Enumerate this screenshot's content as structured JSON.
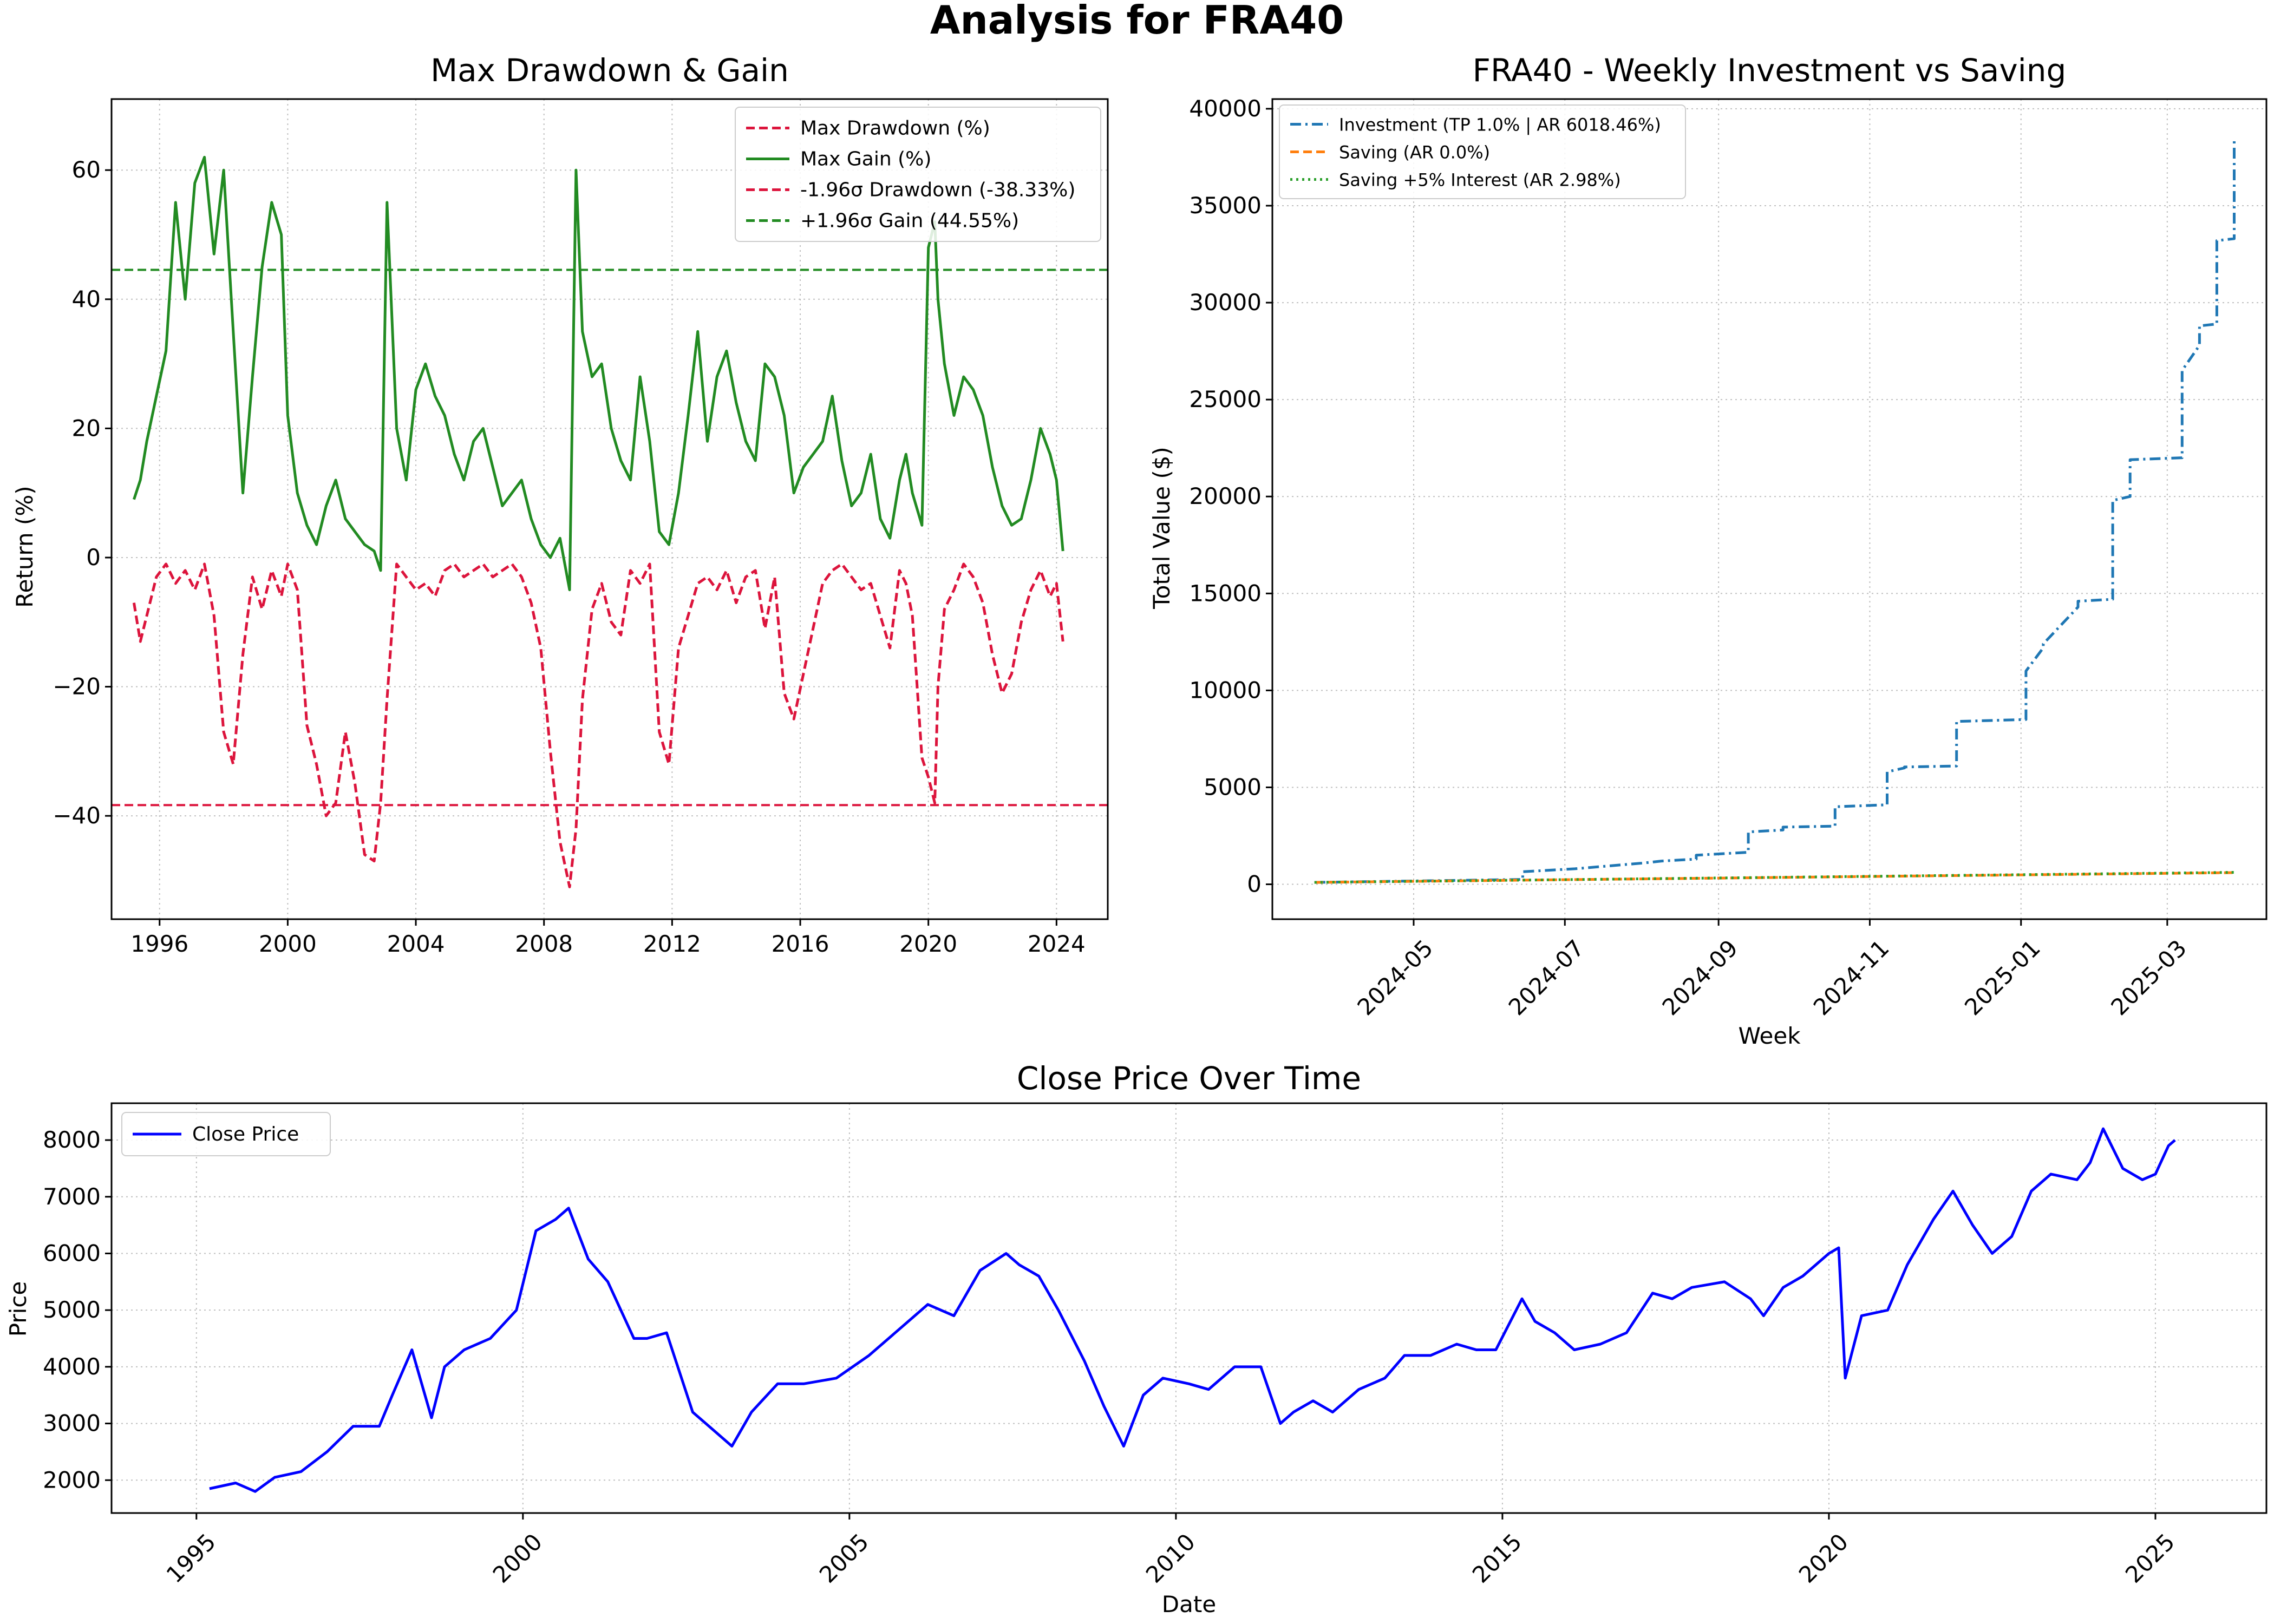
{
  "title": "Analysis for FRA40",
  "chart_data": [
    {
      "id": "drawdown",
      "type": "line",
      "title": "Max Drawdown & Gain",
      "xlabel": "",
      "ylabel": "Return (%)",
      "xlim": [
        1994.5,
        2025.6
      ],
      "ylim": [
        -56,
        71
      ],
      "xticks": [
        1996,
        2000,
        2004,
        2008,
        2012,
        2016,
        2020,
        2024
      ],
      "yticks": [
        -40,
        -20,
        0,
        20,
        40,
        60
      ],
      "ytick_labels": [
        "−40",
        "−20",
        "0",
        "20",
        "40",
        "60"
      ],
      "legend_position": "top-right",
      "grid": true,
      "series": [
        {
          "name": "Max Drawdown (%)",
          "color": "#dc143c",
          "dash": "dashed",
          "x": [
            1995.2,
            1995.4,
            1995.6,
            1995.9,
            1996.2,
            1996.5,
            1996.8,
            1997.1,
            1997.4,
            1997.7,
            1998.0,
            1998.3,
            1998.6,
            1998.9,
            1999.2,
            1999.5,
            1999.8,
            2000.0,
            2000.3,
            2000.6,
            2000.9,
            2001.2,
            2001.5,
            2001.8,
            2002.1,
            2002.4,
            2002.7,
            2002.9,
            2003.1,
            2003.4,
            2003.7,
            2004.0,
            2004.3,
            2004.6,
            2004.9,
            2005.2,
            2005.5,
            2005.8,
            2006.1,
            2006.4,
            2006.7,
            2007.0,
            2007.3,
            2007.6,
            2007.9,
            2008.2,
            2008.5,
            2008.8,
            2009.0,
            2009.2,
            2009.5,
            2009.8,
            2010.1,
            2010.4,
            2010.7,
            2011.0,
            2011.3,
            2011.6,
            2011.9,
            2012.2,
            2012.5,
            2012.8,
            2013.1,
            2013.4,
            2013.7,
            2014.0,
            2014.3,
            2014.6,
            2014.9,
            2015.2,
            2015.5,
            2015.8,
            2016.1,
            2016.4,
            2016.7,
            2017.0,
            2017.3,
            2017.6,
            2017.9,
            2018.2,
            2018.5,
            2018.8,
            2019.1,
            2019.3,
            2019.5,
            2019.8,
            2020.0,
            2020.2,
            2020.3,
            2020.5,
            2020.8,
            2021.1,
            2021.4,
            2021.7,
            2022.0,
            2022.3,
            2022.6,
            2022.9,
            2023.2,
            2023.5,
            2023.8,
            2024.0,
            2024.2
          ],
          "y": [
            -7,
            -13,
            -9,
            -3,
            -1,
            -4,
            -2,
            -5,
            -1,
            -9,
            -27,
            -32,
            -15,
            -3,
            -8,
            -2,
            -6,
            -1,
            -5,
            -26,
            -32,
            -40,
            -38,
            -27,
            -35,
            -46,
            -47,
            -38,
            -22,
            -1,
            -3,
            -5,
            -4,
            -6,
            -2,
            -1,
            -3,
            -2,
            -1,
            -3,
            -2,
            -1,
            -3,
            -7,
            -14,
            -30,
            -44,
            -51,
            -42,
            -22,
            -8,
            -4,
            -10,
            -12,
            -2,
            -4,
            -1,
            -27,
            -32,
            -14,
            -9,
            -4,
            -3,
            -5,
            -2,
            -7,
            -3,
            -2,
            -11,
            -3,
            -21,
            -25,
            -18,
            -11,
            -4,
            -2,
            -1,
            -3,
            -5,
            -4,
            -9,
            -14,
            -2,
            -4,
            -9,
            -31,
            -34,
            -38,
            -20,
            -8,
            -5,
            -1,
            -3,
            -7,
            -15,
            -21,
            -18,
            -10,
            -5,
            -2,
            -6,
            -4,
            -13
          ]
        },
        {
          "name": "Max Gain (%)",
          "color": "#228b22",
          "dash": "solid",
          "x": [
            1995.2,
            1995.4,
            1995.6,
            1995.9,
            1996.2,
            1996.5,
            1996.8,
            1997.1,
            1997.4,
            1997.7,
            1998.0,
            1998.3,
            1998.6,
            1998.9,
            1999.2,
            1999.5,
            1999.8,
            2000.0,
            2000.3,
            2000.6,
            2000.9,
            2001.2,
            2001.5,
            2001.8,
            2002.1,
            2002.4,
            2002.7,
            2002.9,
            2003.1,
            2003.4,
            2003.7,
            2004.0,
            2004.3,
            2004.6,
            2004.9,
            2005.2,
            2005.5,
            2005.8,
            2006.1,
            2006.4,
            2006.7,
            2007.0,
            2007.3,
            2007.6,
            2007.9,
            2008.2,
            2008.5,
            2008.8,
            2009.0,
            2009.2,
            2009.5,
            2009.8,
            2010.1,
            2010.4,
            2010.7,
            2011.0,
            2011.3,
            2011.6,
            2011.9,
            2012.2,
            2012.5,
            2012.8,
            2013.1,
            2013.4,
            2013.7,
            2014.0,
            2014.3,
            2014.6,
            2014.9,
            2015.2,
            2015.5,
            2015.8,
            2016.1,
            2016.4,
            2016.7,
            2017.0,
            2017.3,
            2017.6,
            2017.9,
            2018.2,
            2018.5,
            2018.8,
            2019.1,
            2019.3,
            2019.5,
            2019.8,
            2020.0,
            2020.2,
            2020.3,
            2020.5,
            2020.8,
            2021.1,
            2021.4,
            2021.7,
            2022.0,
            2022.3,
            2022.6,
            2022.9,
            2023.2,
            2023.5,
            2023.8,
            2024.0,
            2024.2
          ],
          "y": [
            9,
            12,
            18,
            25,
            32,
            55,
            40,
            58,
            62,
            47,
            60,
            35,
            10,
            28,
            45,
            55,
            50,
            22,
            10,
            5,
            2,
            8,
            12,
            6,
            4,
            2,
            1,
            -2,
            55,
            20,
            12,
            26,
            30,
            25,
            22,
            16,
            12,
            18,
            20,
            14,
            8,
            10,
            12,
            6,
            2,
            0,
            3,
            -5,
            60,
            35,
            28,
            30,
            20,
            15,
            12,
            28,
            18,
            4,
            2,
            10,
            22,
            35,
            18,
            28,
            32,
            24,
            18,
            15,
            30,
            28,
            22,
            10,
            14,
            16,
            18,
            25,
            15,
            8,
            10,
            16,
            6,
            3,
            12,
            16,
            10,
            5,
            48,
            52,
            40,
            30,
            22,
            28,
            26,
            22,
            14,
            8,
            5,
            6,
            12,
            20,
            16,
            12,
            1
          ]
        }
      ],
      "hlines": [
        {
          "name": "-1.96σ Drawdown (-38.33%)",
          "y": -38.33,
          "color": "#dc143c"
        },
        {
          "name": "+1.96σ Gain (44.55%)",
          "y": 44.55,
          "color": "#228b22"
        }
      ]
    },
    {
      "id": "investment",
      "type": "line",
      "title": "FRA40 - Weekly Investment vs Saving",
      "xlabel": "Week",
      "ylabel": "Total Value ($)",
      "x_unit": "date",
      "xlim": [
        "2024-03-05",
        "2025-04-10"
      ],
      "ylim": [
        -1800,
        40500
      ],
      "xticks": [
        "2024-05-01",
        "2024-07-01",
        "2024-09-01",
        "2024-11-01",
        "2025-01-01",
        "2025-03-01"
      ],
      "xtick_labels": [
        "2024-05",
        "2024-07",
        "2024-09",
        "2024-11",
        "2025-01",
        "2025-03"
      ],
      "yticks": [
        0,
        5000,
        10000,
        15000,
        20000,
        25000,
        30000,
        35000,
        40000
      ],
      "legend_position": "top-left",
      "grid": true,
      "series": [
        {
          "name": "Investment (TP 1.0% | AR 6018.46%)",
          "color": "#1f77b4",
          "dash": "dashdot",
          "x": [
            "2024-03-22",
            "2024-06-14",
            "2024-06-14",
            "2024-07-05",
            "2024-07-19",
            "2024-08-02",
            "2024-08-09",
            "2024-08-23",
            "2024-08-23",
            "2024-09-13",
            "2024-09-13",
            "2024-09-27",
            "2024-09-27",
            "2024-10-18",
            "2024-10-18",
            "2024-11-08",
            "2024-11-08",
            "2024-11-15",
            "2024-11-15",
            "2024-12-06",
            "2024-12-06",
            "2025-01-03",
            "2025-01-03",
            "2025-01-10",
            "2025-01-10",
            "2025-01-24",
            "2025-01-24",
            "2025-02-07",
            "2025-02-07",
            "2025-02-14",
            "2025-02-14",
            "2025-03-07",
            "2025-03-07",
            "2025-03-14",
            "2025-03-14",
            "2025-03-21",
            "2025-03-21",
            "2025-03-28",
            "2025-03-28"
          ],
          "y": [
            100,
            250,
            650,
            800,
            950,
            1100,
            1200,
            1300,
            1500,
            1650,
            2700,
            2800,
            2950,
            3000,
            4000,
            4100,
            5800,
            6000,
            6050,
            6100,
            8400,
            8500,
            11000,
            12200,
            12400,
            14300,
            14600,
            14700,
            19800,
            20000,
            21900,
            22000,
            26500,
            27800,
            28800,
            28900,
            33200,
            33300,
            38500
          ]
        },
        {
          "name": "Saving (AR 0.0%)",
          "color": "#ff7f0e",
          "dash": "dashed",
          "x": [
            "2024-03-22",
            "2025-03-28"
          ],
          "y": [
            100,
            600
          ]
        },
        {
          "name": "Saving +5% Interest (AR 2.98%)",
          "color": "#2ca02c",
          "dash": "dotted",
          "x": [
            "2024-03-22",
            "2025-03-28"
          ],
          "y": [
            100,
            615
          ]
        }
      ]
    },
    {
      "id": "close",
      "type": "line",
      "title": "Close Price Over Time",
      "xlabel": "Date",
      "ylabel": "Price",
      "xlim": [
        1993.7,
        2026.7
      ],
      "ylim": [
        1420,
        8650
      ],
      "xticks": [
        1995,
        2000,
        2005,
        2010,
        2015,
        2020,
        2025
      ],
      "yticks": [
        2000,
        3000,
        4000,
        5000,
        6000,
        7000,
        8000
      ],
      "legend_position": "top-left",
      "grid": true,
      "series": [
        {
          "name": "Close Price",
          "color": "#0000ff",
          "dash": "solid",
          "x": [
            1995.2,
            1995.6,
            1995.9,
            1996.2,
            1996.6,
            1997.0,
            1997.4,
            1997.8,
            1998.0,
            1998.3,
            1998.6,
            1998.8,
            1999.1,
            1999.5,
            1999.9,
            2000.2,
            2000.5,
            2000.7,
            2001.0,
            2001.3,
            2001.7,
            2001.9,
            2002.2,
            2002.6,
            2002.9,
            2003.2,
            2003.5,
            2003.9,
            2004.3,
            2004.8,
            2005.3,
            2005.8,
            2006.2,
            2006.6,
            2007.0,
            2007.4,
            2007.6,
            2007.9,
            2008.2,
            2008.6,
            2008.9,
            2009.2,
            2009.5,
            2009.8,
            2010.2,
            2010.5,
            2010.9,
            2011.3,
            2011.6,
            2011.8,
            2012.1,
            2012.4,
            2012.8,
            2013.2,
            2013.5,
            2013.9,
            2014.3,
            2014.6,
            2014.9,
            2015.3,
            2015.5,
            2015.8,
            2016.1,
            2016.5,
            2016.9,
            2017.3,
            2017.6,
            2017.9,
            2018.4,
            2018.8,
            2019.0,
            2019.3,
            2019.6,
            2020.0,
            2020.15,
            2020.25,
            2020.5,
            2020.9,
            2021.2,
            2021.6,
            2021.9,
            2022.2,
            2022.5,
            2022.8,
            2023.1,
            2023.4,
            2023.8,
            2024.0,
            2024.2,
            2024.5,
            2024.8,
            2025.0,
            2025.2,
            2025.3
          ],
          "y": [
            1850,
            1950,
            1800,
            2050,
            2150,
            2500,
            2950,
            2950,
            3500,
            4300,
            3100,
            4000,
            4300,
            4500,
            5000,
            6400,
            6600,
            6800,
            5900,
            5500,
            4500,
            4500,
            4600,
            3200,
            2900,
            2600,
            3200,
            3700,
            3700,
            3800,
            4200,
            4700,
            5100,
            4900,
            5700,
            6000,
            5800,
            5600,
            5000,
            4100,
            3300,
            2600,
            3500,
            3800,
            3700,
            3600,
            4000,
            4000,
            3000,
            3200,
            3400,
            3200,
            3600,
            3800,
            4200,
            4200,
            4400,
            4300,
            4300,
            5200,
            4800,
            4600,
            4300,
            4400,
            4600,
            5300,
            5200,
            5400,
            5500,
            5200,
            4900,
            5400,
            5600,
            6000,
            6100,
            3800,
            4900,
            5000,
            5800,
            6600,
            7100,
            6500,
            6000,
            6300,
            7100,
            7400,
            7300,
            7600,
            8200,
            7500,
            7300,
            7400,
            7900,
            8000
          ]
        }
      ]
    }
  ]
}
